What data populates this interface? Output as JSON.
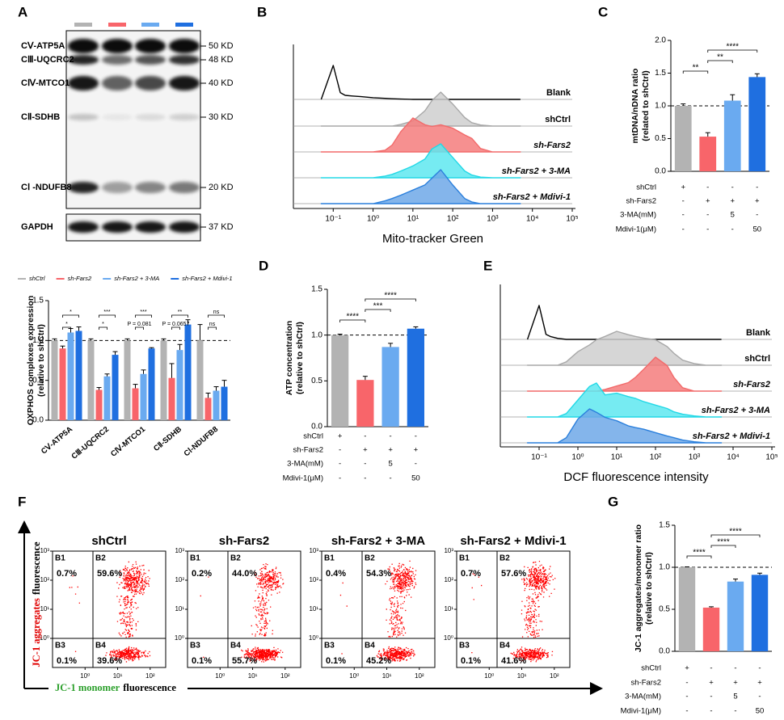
{
  "blot": {
    "panel": "A",
    "lanes": [
      "#b3b3b3",
      "#f8656a",
      "#6aaaf0",
      "#1f6fe0"
    ],
    "bands": [
      {
        "name": "CⅤ-ATP5A",
        "size": "50 KD"
      },
      {
        "name": "CⅢ-UQCRC2",
        "size": "48 KD"
      },
      {
        "name": "CⅣ-MTCO1",
        "size": "40 KD"
      },
      {
        "name": "CⅡ-SDHB",
        "size": "30 KD"
      },
      {
        "name": "CⅠ -NDUFB8",
        "size": "20 KD"
      }
    ],
    "loading": {
      "name": "GAPDH",
      "size": "37 KD"
    }
  },
  "chart_data": [
    {
      "type": "bar",
      "ylabel": [
        "OXPHOS complexes expression",
        "(relative to shCtrl)"
      ],
      "categories": [
        "CⅤ-ATP5A",
        "CⅢ-UQCRC2",
        "CⅣ-MTCO1",
        "CⅡ-SDHB",
        "CⅠ-NDUFB8"
      ],
      "series": [
        {
          "name": "shCtrl",
          "color": "#b3b3b3",
          "values": [
            1,
            1,
            1,
            1,
            1
          ],
          "errors": [
            0.02,
            0.02,
            0.02,
            0.02,
            0.2
          ]
        },
        {
          "name": "sh-Fars2",
          "color": "#f8656a",
          "values": [
            0.9,
            0.38,
            0.4,
            0.53,
            0.28
          ],
          "errors": [
            0.03,
            0.03,
            0.05,
            0.18,
            0.06
          ]
        },
        {
          "name": "sh-Fars2 + 3-MA",
          "color": "#6aaaf0",
          "values": [
            1.1,
            0.55,
            0.58,
            0.88,
            0.37
          ],
          "errors": [
            0.05,
            0.03,
            0.05,
            0.07,
            0.05
          ]
        },
        {
          "name": "sh-Fars2 + Mdivi-1",
          "color": "#1f6fe0",
          "values": [
            1.12,
            0.82,
            0.9,
            1.2,
            0.42
          ],
          "errors": [
            0.05,
            0.04,
            0.01,
            0.06,
            0.08
          ]
        }
      ],
      "ylim": [
        0,
        1.5
      ],
      "yticks": [
        {
          "value": 0,
          "label": "0.0"
        },
        0.5,
        {
          "value": 1,
          "label": "1.0"
        },
        1.5
      ],
      "refline": 1,
      "annotations": [
        {
          "category": 0,
          "text": "*",
          "pair": [
            1,
            3
          ]
        },
        {
          "category": 0,
          "text": "*",
          "pair": [
            1,
            2
          ]
        },
        {
          "category": 1,
          "text": "***",
          "pair": [
            1,
            3
          ]
        },
        {
          "category": 1,
          "text": "*",
          "pair": [
            1,
            2
          ]
        },
        {
          "category": 2,
          "text": "***",
          "pair": [
            1,
            3
          ]
        },
        {
          "category": 2,
          "text": "P = 0.081",
          "pair": [
            1,
            2
          ]
        },
        {
          "category": 3,
          "text": "**",
          "pair": [
            1,
            3
          ]
        },
        {
          "category": 3,
          "text": "P = 0.0657",
          "pair": [
            1,
            2
          ]
        },
        {
          "category": 4,
          "text": "ns",
          "pair": [
            1,
            3
          ]
        },
        {
          "category": 4,
          "text": "ns",
          "pair": [
            1,
            2
          ]
        }
      ]
    },
    {
      "type": "ridgeline",
      "panel": "B",
      "xlabel": "Mito-tracker Green",
      "xlim": [
        0.01,
        100000
      ],
      "xticks": [
        {
          "value": 0.1,
          "label": "10⁻¹"
        },
        {
          "value": 1,
          "label": "10⁰"
        },
        {
          "value": 10,
          "label": "10¹"
        },
        {
          "value": 100,
          "label": "10²"
        },
        {
          "value": 1000,
          "label": "10³"
        },
        {
          "value": 10000,
          "label": "10⁴"
        },
        {
          "value": 100000,
          "label": "10⁵"
        }
      ],
      "x": [
        0.05,
        0.1,
        0.15,
        0.2,
        0.3,
        0.5,
        1,
        2,
        3,
        5,
        10,
        20,
        30,
        50,
        100,
        200,
        300,
        500,
        1000,
        2000,
        5000
      ],
      "series": [
        {
          "name": "Blank",
          "color": "#000000",
          "fill": "none",
          "values": [
            0,
            100,
            20,
            12,
            10,
            8,
            5,
            3,
            2,
            1,
            0,
            0,
            0,
            0,
            0,
            0,
            0,
            0,
            0,
            0,
            0
          ]
        },
        {
          "name": "shCtrl",
          "color": "#a8a8a8",
          "fill": "#cfcfcf",
          "values": [
            0,
            0,
            0,
            0,
            0,
            0,
            0,
            0,
            0,
            5,
            15,
            45,
            75,
            100,
            65,
            25,
            10,
            3,
            0,
            0,
            0
          ]
        },
        {
          "name": "sh-Fars2",
          "color": "#f26a6a",
          "fill": "#f47c7c",
          "values": [
            0,
            0,
            0,
            0,
            0,
            0,
            0,
            5,
            20,
            60,
            100,
            80,
            75,
            80,
            70,
            50,
            40,
            10,
            0,
            0,
            0
          ]
        },
        {
          "name": "sh-Fars2 + 3-MA",
          "color": "#22d8e6",
          "fill": "#5ee8f0",
          "values": [
            0,
            0,
            0,
            0,
            0,
            0,
            0,
            5,
            10,
            20,
            35,
            55,
            85,
            100,
            60,
            20,
            8,
            2,
            0,
            0,
            0
          ]
        },
        {
          "name": "sh-Fars2 + Mdivi-1",
          "color": "#2a7fdc",
          "fill": "#6fa8e8",
          "values": [
            0,
            0,
            0,
            0,
            0,
            0,
            0,
            8,
            15,
            25,
            40,
            55,
            75,
            100,
            55,
            15,
            5,
            0,
            0,
            0,
            0
          ]
        }
      ]
    },
    {
      "type": "bar",
      "panel": "C",
      "ylabel": [
        "mtDNA/nDNA ratio",
        "(related to shCtrl)"
      ],
      "values": [
        1.0,
        0.53,
        1.08,
        1.44
      ],
      "errors": [
        0.03,
        0.06,
        0.09,
        0.05
      ],
      "colors": [
        "#b3b3b3",
        "#f8656a",
        "#6aaaf0",
        "#1f6fe0"
      ],
      "ylim": [
        0,
        2
      ],
      "yticks": [
        {
          "value": 0,
          "label": "0.0"
        },
        0.5,
        {
          "value": 1,
          "label": "1.0"
        },
        1.5,
        {
          "value": 2,
          "label": "2.0"
        }
      ],
      "refline": 1,
      "annotations": [
        {
          "text": "**",
          "pair": [
            0,
            1
          ]
        },
        {
          "text": "**",
          "pair": [
            1,
            2
          ]
        },
        {
          "text": "****",
          "pair": [
            1,
            3
          ]
        }
      ],
      "conditions": [
        {
          "name": "shCtrl",
          "cells": [
            "+",
            "-",
            "-",
            "-"
          ]
        },
        {
          "name": "sh-Fars2",
          "cells": [
            "-",
            "+",
            "+",
            "+"
          ]
        },
        {
          "name": "3-MA(mM)",
          "cells": [
            "-",
            "-",
            "5",
            "-"
          ]
        },
        {
          "name": "Mdivi-1(μM)",
          "cells": [
            "-",
            "-",
            "-",
            "50"
          ]
        }
      ]
    },
    {
      "type": "bar",
      "panel": "D",
      "ylabel": [
        "ATP concentration",
        "(relative to shCtrl)"
      ],
      "values": [
        1.0,
        0.51,
        0.87,
        1.07
      ],
      "errors": [
        0.01,
        0.04,
        0.04,
        0.02
      ],
      "colors": [
        "#b3b3b3",
        "#f8656a",
        "#6aaaf0",
        "#1f6fe0"
      ],
      "ylim": [
        0,
        1.5
      ],
      "yticks": [
        {
          "value": 0,
          "label": "0.0"
        },
        0.5,
        {
          "value": 1,
          "label": "1.0"
        },
        1.5
      ],
      "refline": 1,
      "annotations": [
        {
          "text": "****",
          "pair": [
            0,
            1
          ]
        },
        {
          "text": "***",
          "pair": [
            1,
            2
          ]
        },
        {
          "text": "****",
          "pair": [
            1,
            3
          ]
        }
      ],
      "conditions": [
        {
          "name": "shCtrl",
          "cells": [
            "+",
            "-",
            "-",
            "-"
          ]
        },
        {
          "name": "sh-Fars2",
          "cells": [
            "-",
            "+",
            "+",
            "+"
          ]
        },
        {
          "name": "3-MA(mM)",
          "cells": [
            "-",
            "-",
            "5",
            "-"
          ]
        },
        {
          "name": "Mdivi-1(μM)",
          "cells": [
            "-",
            "-",
            "-",
            "50"
          ]
        }
      ]
    },
    {
      "type": "ridgeline",
      "panel": "E",
      "xlabel": "DCF fluorescence intensity",
      "xlim": [
        0.01,
        100000
      ],
      "xticks": [
        {
          "value": 0.1,
          "label": "10⁻¹"
        },
        {
          "value": 1,
          "label": "10⁰"
        },
        {
          "value": 10,
          "label": "10¹"
        },
        {
          "value": 100,
          "label": "10²"
        },
        {
          "value": 1000,
          "label": "10³"
        },
        {
          "value": 10000,
          "label": "10⁴"
        },
        {
          "value": 100000,
          "label": "10⁵"
        }
      ],
      "x": [
        0.05,
        0.1,
        0.15,
        0.2,
        0.3,
        0.5,
        1,
        2,
        3,
        5,
        10,
        20,
        30,
        50,
        100,
        200,
        300,
        500,
        1000,
        2000,
        5000
      ],
      "series": [
        {
          "name": "Blank",
          "color": "#000000",
          "fill": "none",
          "values": [
            0,
            100,
            15,
            8,
            3,
            0,
            0,
            0,
            0,
            0,
            0,
            0,
            0,
            0,
            0,
            0,
            0,
            0,
            0,
            0,
            0
          ]
        },
        {
          "name": "shCtrl",
          "color": "#a8a8a8",
          "fill": "#cfcfcf",
          "values": [
            0,
            0,
            0,
            0,
            0,
            10,
            40,
            60,
            75,
            85,
            100,
            90,
            85,
            80,
            75,
            55,
            35,
            15,
            5,
            0,
            0
          ]
        },
        {
          "name": "sh-Fars2",
          "color": "#f26a6a",
          "fill": "#f47c7c",
          "values": [
            0,
            0,
            0,
            0,
            0,
            0,
            0,
            0,
            0,
            5,
            15,
            25,
            40,
            65,
            100,
            75,
            40,
            10,
            0,
            0,
            0
          ]
        },
        {
          "name": "sh-Fars2 + 3-MA",
          "color": "#22d8e6",
          "fill": "#5ee8f0",
          "values": [
            0,
            0,
            0,
            0,
            0,
            10,
            50,
            90,
            100,
            65,
            70,
            60,
            55,
            45,
            35,
            25,
            15,
            8,
            3,
            0,
            0
          ]
        },
        {
          "name": "sh-Fars2 + Mdivi-1",
          "color": "#2a7fdc",
          "fill": "#6fa8e8",
          "values": [
            0,
            0,
            0,
            0,
            0,
            15,
            70,
            100,
            90,
            75,
            65,
            50,
            45,
            40,
            30,
            20,
            15,
            8,
            3,
            0,
            0
          ]
        }
      ]
    },
    {
      "type": "quadrant",
      "panel": "F",
      "color": "#ff0000",
      "y_label": [
        {
          "text": "JC-1 aggregates",
          "color": "#e00000"
        },
        {
          "text": "fluorescence",
          "color": "#000000"
        }
      ],
      "x_label": [
        {
          "text": "JC-1 monomer",
          "color": "#2ca02c"
        },
        {
          "text": "fluorescence",
          "color": "#000000"
        }
      ],
      "xlim": [
        0.1,
        300
      ],
      "ylim": [
        0.1,
        1000
      ],
      "xticks": [
        {
          "value": 1,
          "label": "10⁰"
        },
        {
          "value": 10,
          "label": "10¹"
        },
        {
          "value": 100,
          "label": "10²"
        }
      ],
      "yticks": [
        {
          "value": 1,
          "label": "10⁰"
        },
        {
          "value": 10,
          "label": "10¹"
        },
        {
          "value": 100,
          "label": "10²"
        },
        {
          "value": 1000,
          "label": "10³"
        }
      ],
      "quadrant_names": [
        "B1",
        "B2",
        "B3",
        "B4"
      ],
      "plots": [
        {
          "title": "shCtrl",
          "values": [
            0.7,
            59.6,
            0.1,
            39.6
          ],
          "value_labels": [
            "0.7%",
            "59.6%",
            "0.1%",
            "39.6%"
          ]
        },
        {
          "title": "sh-Fars2",
          "values": [
            0.2,
            44.0,
            0.1,
            55.7
          ],
          "value_labels": [
            "0.2%",
            "44.0%",
            "0.1%",
            "55.7%"
          ]
        },
        {
          "title": "sh-Fars2 + 3-MA",
          "values": [
            0.4,
            54.3,
            0.1,
            45.2
          ],
          "value_labels": [
            "0.4%",
            "54.3%",
            "0.1%",
            "45.2%"
          ]
        },
        {
          "title": "sh-Fars2 + Mdivi-1",
          "values": [
            0.7,
            57.6,
            0.1,
            41.6
          ],
          "value_labels": [
            "0.7%",
            "57.6%",
            "0.1%",
            "41.6%"
          ]
        }
      ]
    },
    {
      "type": "bar",
      "panel": "G",
      "ylabel": [
        "JC-1 aggregates/monomer ratio",
        "(relative to shCtrl)"
      ],
      "values": [
        1.0,
        0.52,
        0.83,
        0.91
      ],
      "errors": [
        0.005,
        0.01,
        0.03,
        0.02
      ],
      "colors": [
        "#b3b3b3",
        "#f8656a",
        "#6aaaf0",
        "#1f6fe0"
      ],
      "ylim": [
        0,
        1.5
      ],
      "yticks": [
        {
          "value": 0,
          "label": "0.0"
        },
        0.5,
        {
          "value": 1,
          "label": "1.0"
        },
        1.5
      ],
      "refline": 1,
      "annotations": [
        {
          "text": "****",
          "pair": [
            0,
            1
          ]
        },
        {
          "text": "****",
          "pair": [
            1,
            2
          ]
        },
        {
          "text": "****",
          "pair": [
            1,
            3
          ]
        }
      ],
      "conditions": [
        {
          "name": "shCtrl",
          "cells": [
            "+",
            "-",
            "-",
            "-"
          ]
        },
        {
          "name": "sh-Fars2",
          "cells": [
            "-",
            "+",
            "+",
            "+"
          ]
        },
        {
          "name": "3-MA(mM)",
          "cells": [
            "-",
            "-",
            "5",
            "-"
          ]
        },
        {
          "name": "Mdivi-1(μM)",
          "cells": [
            "-",
            "-",
            "-",
            "50"
          ]
        }
      ]
    }
  ]
}
